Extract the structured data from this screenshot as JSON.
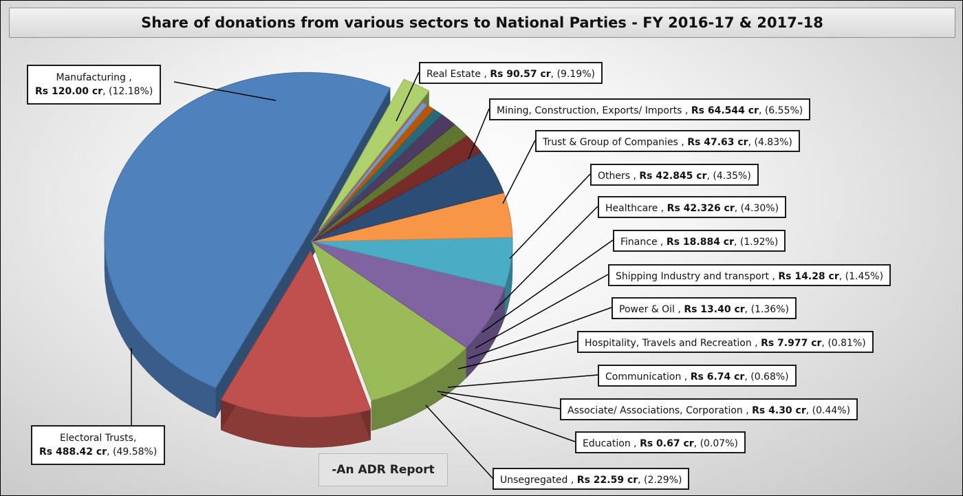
{
  "chart_data": {
    "type": "pie",
    "title": "Share of donations from various sectors to National Parties - FY 2016-17 & 2017-18",
    "slices": [
      {
        "name": "Electoral Trusts",
        "value": 488.42,
        "value_text": "488.42",
        "percent": "49.58%",
        "color": "#4f81bd"
      },
      {
        "name": "Manufacturing",
        "value": 120.0,
        "value_text": "120.00",
        "percent": "12.18%",
        "color": "#c0504d"
      },
      {
        "name": "Real Estate",
        "value": 90.57,
        "value_text": "90.57",
        "percent": "9.19%",
        "color": "#9bbb59"
      },
      {
        "name": "Mining, Construction, Exports/ Imports",
        "value": 64.544,
        "value_text": "64.544",
        "percent": "6.55%",
        "color": "#8064a2"
      },
      {
        "name": "Trust & Group of Companies",
        "value": 47.63,
        "value_text": "47.63",
        "percent": "4.83%",
        "color": "#4bacc6"
      },
      {
        "name": "Others",
        "value": 42.845,
        "value_text": "42.845",
        "percent": "4.35%",
        "color": "#f79646"
      },
      {
        "name": "Healthcare",
        "value": 42.326,
        "value_text": "42.326",
        "percent": "4.30%",
        "color": "#2c4d75"
      },
      {
        "name": "Finance",
        "value": 18.884,
        "value_text": "18.884",
        "percent": "1.92%",
        "color": "#772c2a"
      },
      {
        "name": "Shipping Industry and transport",
        "value": 14.28,
        "value_text": "14.28",
        "percent": "1.45%",
        "color": "#5f7530"
      },
      {
        "name": "Power & Oil",
        "value": 13.4,
        "value_text": "13.40",
        "percent": "1.36%",
        "color": "#4d3b62"
      },
      {
        "name": "Hospitality, Travels and Recreation",
        "value": 7.977,
        "value_text": "7.977",
        "percent": "0.81%",
        "color": "#276a7c"
      },
      {
        "name": "Communication",
        "value": 6.74,
        "value_text": "6.74",
        "percent": "0.68%",
        "color": "#b65708"
      },
      {
        "name": "Associate/ Associations, Corporation",
        "value": 4.3,
        "value_text": "4.30",
        "percent": "0.44%",
        "color": "#729aca"
      },
      {
        "name": "Education",
        "value": 0.67,
        "value_text": "0.67",
        "percent": "0.07%",
        "color": "#cd7371"
      },
      {
        "name": "Unsegregated",
        "value": 22.59,
        "value_text": "22.59",
        "percent": "2.29%",
        "color": "#afd16b"
      }
    ],
    "currency_prefix": "Rs",
    "unit": "cr",
    "source_note": "-An ADR Report"
  }
}
